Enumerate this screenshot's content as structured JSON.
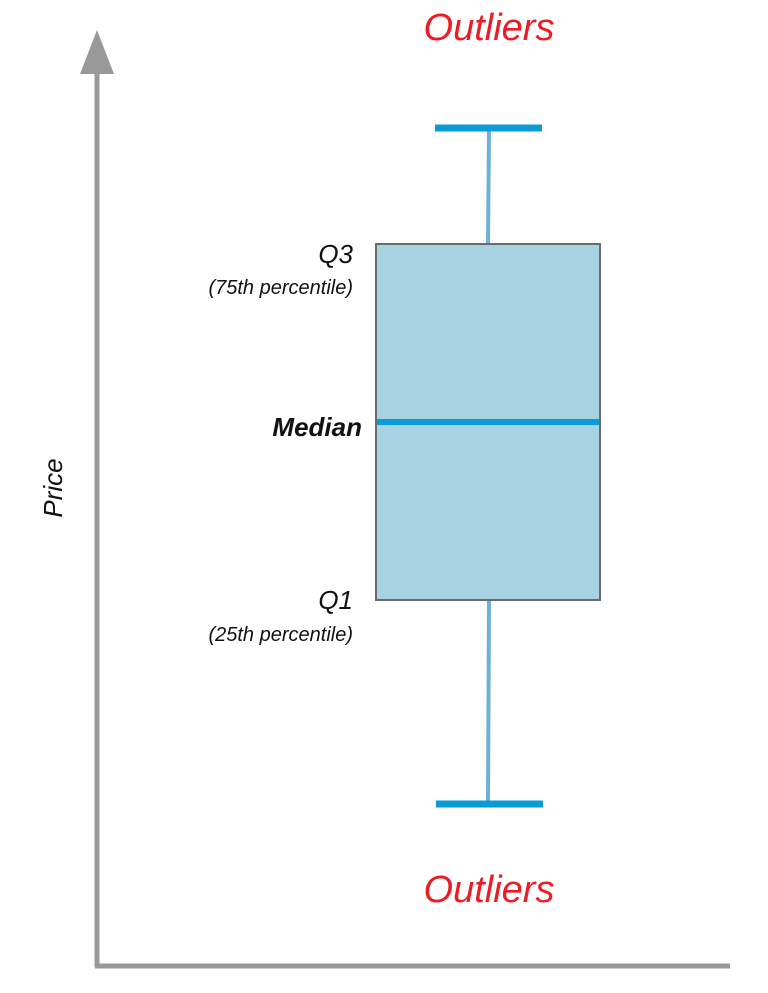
{
  "colors": {
    "axis": "#999999",
    "box_fill": "#a7d3e3",
    "box_stroke": "#6b6b6b",
    "median": "#0a9cd8",
    "whisker": "#6cb2d6",
    "cap": "#0a9cd8",
    "outlier_text": "#ed1c24",
    "label_text": "#111111"
  },
  "labels": {
    "outliers_top": "Outliers",
    "outliers_bottom": "Outliers",
    "q3": "Q3",
    "q3_note": "(75th percentile)",
    "median": "Median",
    "q1": "Q1",
    "q1_note": "(25th percentile)",
    "y_axis": "Price"
  }
}
